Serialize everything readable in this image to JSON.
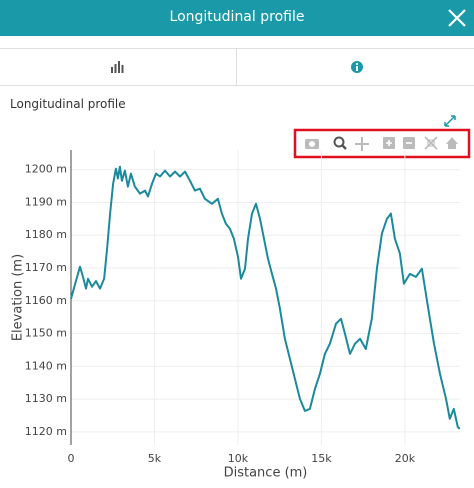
{
  "header": {
    "title": "Longitudinal profile"
  },
  "panel_title": "Longitudinal profile",
  "chart_data": {
    "type": "line",
    "xlabel": "Distance (m)",
    "ylabel": "Elevation (m)",
    "x": [
      0,
      240,
      540,
      720,
      900,
      1020,
      1260,
      1500,
      1740,
      1980,
      2160,
      2340,
      2520,
      2690,
      2810,
      2930,
      3050,
      3230,
      3410,
      3590,
      3830,
      4130,
      4430,
      4610,
      4850,
      5090,
      5330,
      5630,
      5930,
      6230,
      6530,
      6830,
      7130,
      7420,
      7720,
      8020,
      8440,
      8800,
      9040,
      9280,
      9520,
      9760,
      10000,
      10180,
      10420,
      10600,
      10840,
      11080,
      11320,
      11560,
      11800,
      12040,
      12280,
      12510,
      12810,
      13110,
      13410,
      13710,
      14010,
      14310,
      14610,
      14910,
      15210,
      15510,
      15870,
      16170,
      16410,
      16710,
      17010,
      17310,
      17660,
      18020,
      18320,
      18620,
      18920,
      19160,
      19400,
      19700,
      19940,
      20300,
      20660,
      21020,
      21260,
      21500,
      21740,
      22100,
      22460,
      22690,
      22930,
      23170,
      23290
    ],
    "series": [
      {
        "name": "Elevation",
        "color": "#1b8a9c",
        "values": [
          1160.6,
          1165,
          1170.4,
          1167.3,
          1163.7,
          1166.7,
          1164.3,
          1166,
          1163.7,
          1166.7,
          1175.9,
          1186.6,
          1195.7,
          1200.3,
          1197.3,
          1200.9,
          1196.6,
          1199.7,
          1194.8,
          1198.8,
          1194.8,
          1192.7,
          1193.6,
          1191.8,
          1195.7,
          1198.8,
          1197.9,
          1199.7,
          1197.9,
          1199.4,
          1197.9,
          1199.4,
          1196.6,
          1193.6,
          1194.2,
          1191.1,
          1189.6,
          1191.1,
          1186.6,
          1183.5,
          1182,
          1178.9,
          1173.4,
          1166.7,
          1169.8,
          1178.9,
          1186.6,
          1189.6,
          1185,
          1178.9,
          1172.8,
          1168.2,
          1163.7,
          1157.6,
          1148.4,
          1142.3,
          1136.2,
          1130.1,
          1126.4,
          1127,
          1133.1,
          1137.7,
          1143.8,
          1146.9,
          1153,
          1154.5,
          1149.9,
          1143.8,
          1146.9,
          1148.4,
          1145.3,
          1154.5,
          1169.8,
          1180.5,
          1185,
          1186.6,
          1178.9,
          1174.4,
          1165.2,
          1168.2,
          1167.3,
          1169.8,
          1162.1,
          1154.5,
          1146.9,
          1137.7,
          1130.1,
          1124,
          1127,
          1121.5,
          1120.9
        ]
      }
    ],
    "xlim": [
      0,
      23300
    ],
    "ylim": [
      1116,
      1206
    ],
    "xticks": [
      0,
      {
        "value": 5000,
        "label": "5k"
      },
      {
        "value": 10000,
        "label": "10k"
      },
      {
        "value": 15000,
        "label": "15k"
      },
      {
        "value": 20000,
        "label": "20k"
      }
    ],
    "yticks": [
      {
        "value": 1120,
        "label": "1120 m"
      },
      {
        "value": 1130,
        "label": "1130 m"
      },
      {
        "value": 1140,
        "label": "1140 m"
      },
      {
        "value": 1150,
        "label": "1150 m"
      },
      {
        "value": 1160,
        "label": "1160 m"
      },
      {
        "value": 1170,
        "label": "1170 m"
      },
      {
        "value": 1180,
        "label": "1180 m"
      },
      {
        "value": 1190,
        "label": "1190 m"
      },
      {
        "value": 1200,
        "label": "1200 m"
      }
    ],
    "grid": true
  }
}
